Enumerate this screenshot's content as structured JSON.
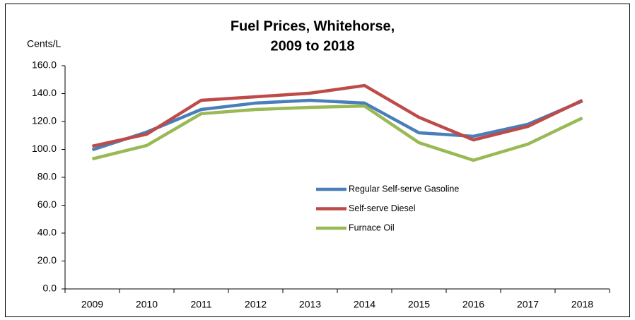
{
  "chart_data": {
    "type": "line",
    "title": [
      "Fuel Prices, Whitehorse,",
      "2009 to 2018"
    ],
    "y_label": "Cents/L",
    "categories": [
      "2009",
      "2010",
      "2011",
      "2012",
      "2013",
      "2014",
      "2015",
      "2016",
      "2017",
      "2018"
    ],
    "series": [
      {
        "name": "Regular Self-serve Gasoline",
        "color": "#4a7ebb",
        "values": [
          99.7,
          112.4,
          128.6,
          133.2,
          135.2,
          133.2,
          111.9,
          109.4,
          118.0,
          134.7
        ]
      },
      {
        "name": "Self-serve Diesel",
        "color": "#be4b48",
        "values": [
          102.3,
          110.9,
          135.2,
          137.7,
          140.3,
          145.8,
          123.0,
          106.8,
          116.5,
          135.2
        ]
      },
      {
        "name": "Furnace Oil",
        "color": "#98b954",
        "values": [
          93.2,
          102.8,
          125.6,
          128.6,
          130.1,
          131.1,
          104.8,
          92.2,
          103.8,
          122.5
        ]
      }
    ],
    "ylim": [
      0,
      160
    ],
    "yticks": [
      {
        "value": 0,
        "label": "0.0"
      },
      {
        "value": 20,
        "label": "20.0"
      },
      {
        "value": 40,
        "label": "40.0"
      },
      {
        "value": 60,
        "label": "60.0"
      },
      {
        "value": 80,
        "label": "80.0"
      },
      {
        "value": 100,
        "label": "100.0"
      },
      {
        "value": 120,
        "label": "120.0"
      },
      {
        "value": 140,
        "label": "140.0"
      },
      {
        "value": 160,
        "label": "160.0"
      }
    ],
    "grid": false
  }
}
